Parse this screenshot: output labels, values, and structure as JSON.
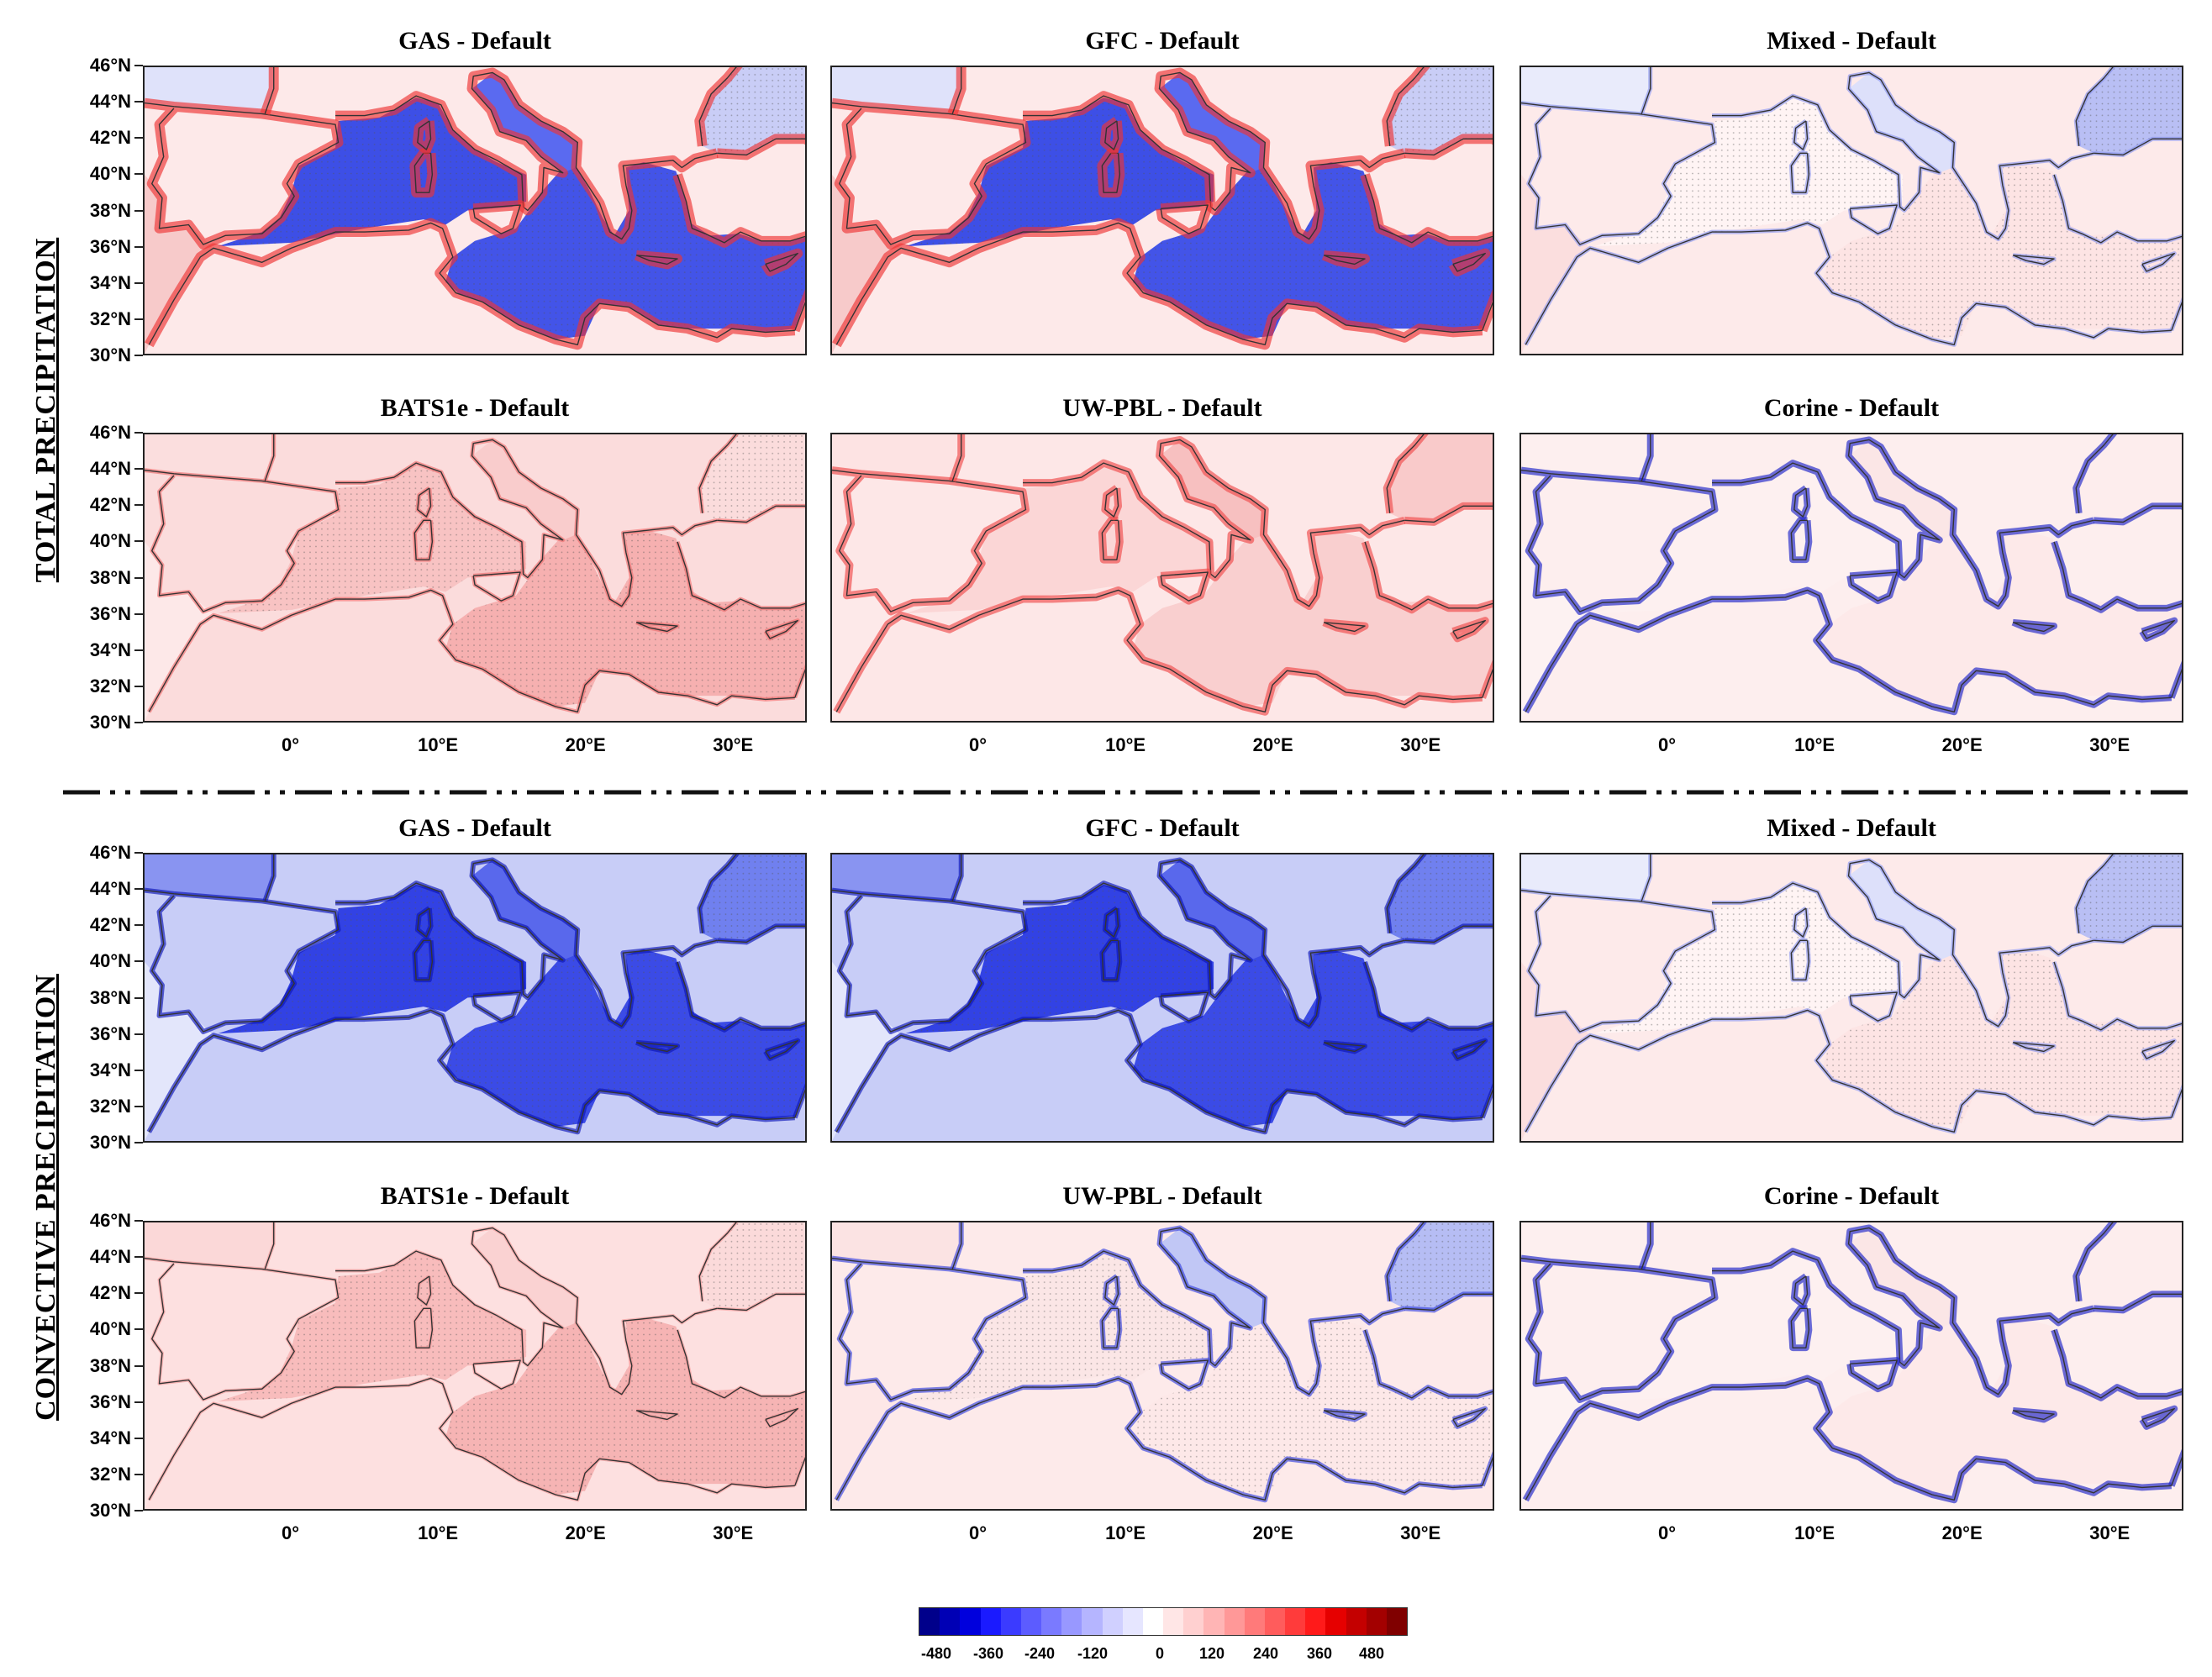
{
  "sections": [
    {
      "id": "total",
      "label": "TOTAL PRECIPITATION"
    },
    {
      "id": "convective",
      "label": "CONVECTIVE PRECIPITATION"
    }
  ],
  "panels": [
    {
      "title": "GAS - Default",
      "section": "total",
      "tone": "blue-sea-red-coast"
    },
    {
      "title": "GFC - Default",
      "section": "total",
      "tone": "blue-sea-red-coast"
    },
    {
      "title": "Mixed - Default",
      "section": "total",
      "tone": "light-mixed"
    },
    {
      "title": "BATS1e - Default",
      "section": "total",
      "tone": "red"
    },
    {
      "title": "UW-PBL - Default",
      "section": "total",
      "tone": "red-coast"
    },
    {
      "title": "Corine - Default",
      "section": "total",
      "tone": "coast-blue"
    },
    {
      "title": "GAS - Default",
      "section": "convective",
      "tone": "blue"
    },
    {
      "title": "GFC - Default",
      "section": "convective",
      "tone": "blue"
    },
    {
      "title": "Mixed - Default",
      "section": "convective",
      "tone": "light-mixed"
    },
    {
      "title": "BATS1e - Default",
      "section": "convective",
      "tone": "red-light"
    },
    {
      "title": "UW-PBL - Default",
      "section": "convective",
      "tone": "light-blue-coast"
    },
    {
      "title": "Corine - Default",
      "section": "convective",
      "tone": "coast-blue"
    }
  ],
  "lat_ticks": [
    "46°N",
    "44°N",
    "42°N",
    "40°N",
    "38°N",
    "36°N",
    "34°N",
    "32°N",
    "30°N"
  ],
  "lon_ticks": [
    "0°",
    "10°E",
    "20°E",
    "30°E"
  ],
  "colorbar": {
    "labels": [
      "-480",
      "-360",
      "-240",
      "-120",
      "0",
      "120",
      "240",
      "360",
      "480"
    ],
    "colors": [
      "#00008b",
      "#0000b5",
      "#0000dd",
      "#1a1aff",
      "#3b3bff",
      "#5c5cff",
      "#7a7aff",
      "#9898ff",
      "#b5b5ff",
      "#d0d0ff",
      "#e6e6ff",
      "#ffffff",
      "#ffe6e6",
      "#ffd0d0",
      "#ffb5b5",
      "#ff9898",
      "#ff7a7a",
      "#ff5c5c",
      "#ff3b3b",
      "#ff1a1a",
      "#e60000",
      "#c40000",
      "#a30000",
      "#800000"
    ]
  },
  "palette": {
    "sea_blue": "#3d4fe6",
    "deep_blue": "#1f2fd0",
    "light_blue": "#c6cbf8",
    "pale_red": "#fbdede",
    "mid_red": "#f5a0a0",
    "strong_red": "#ee3232",
    "coast": "#333333"
  }
}
